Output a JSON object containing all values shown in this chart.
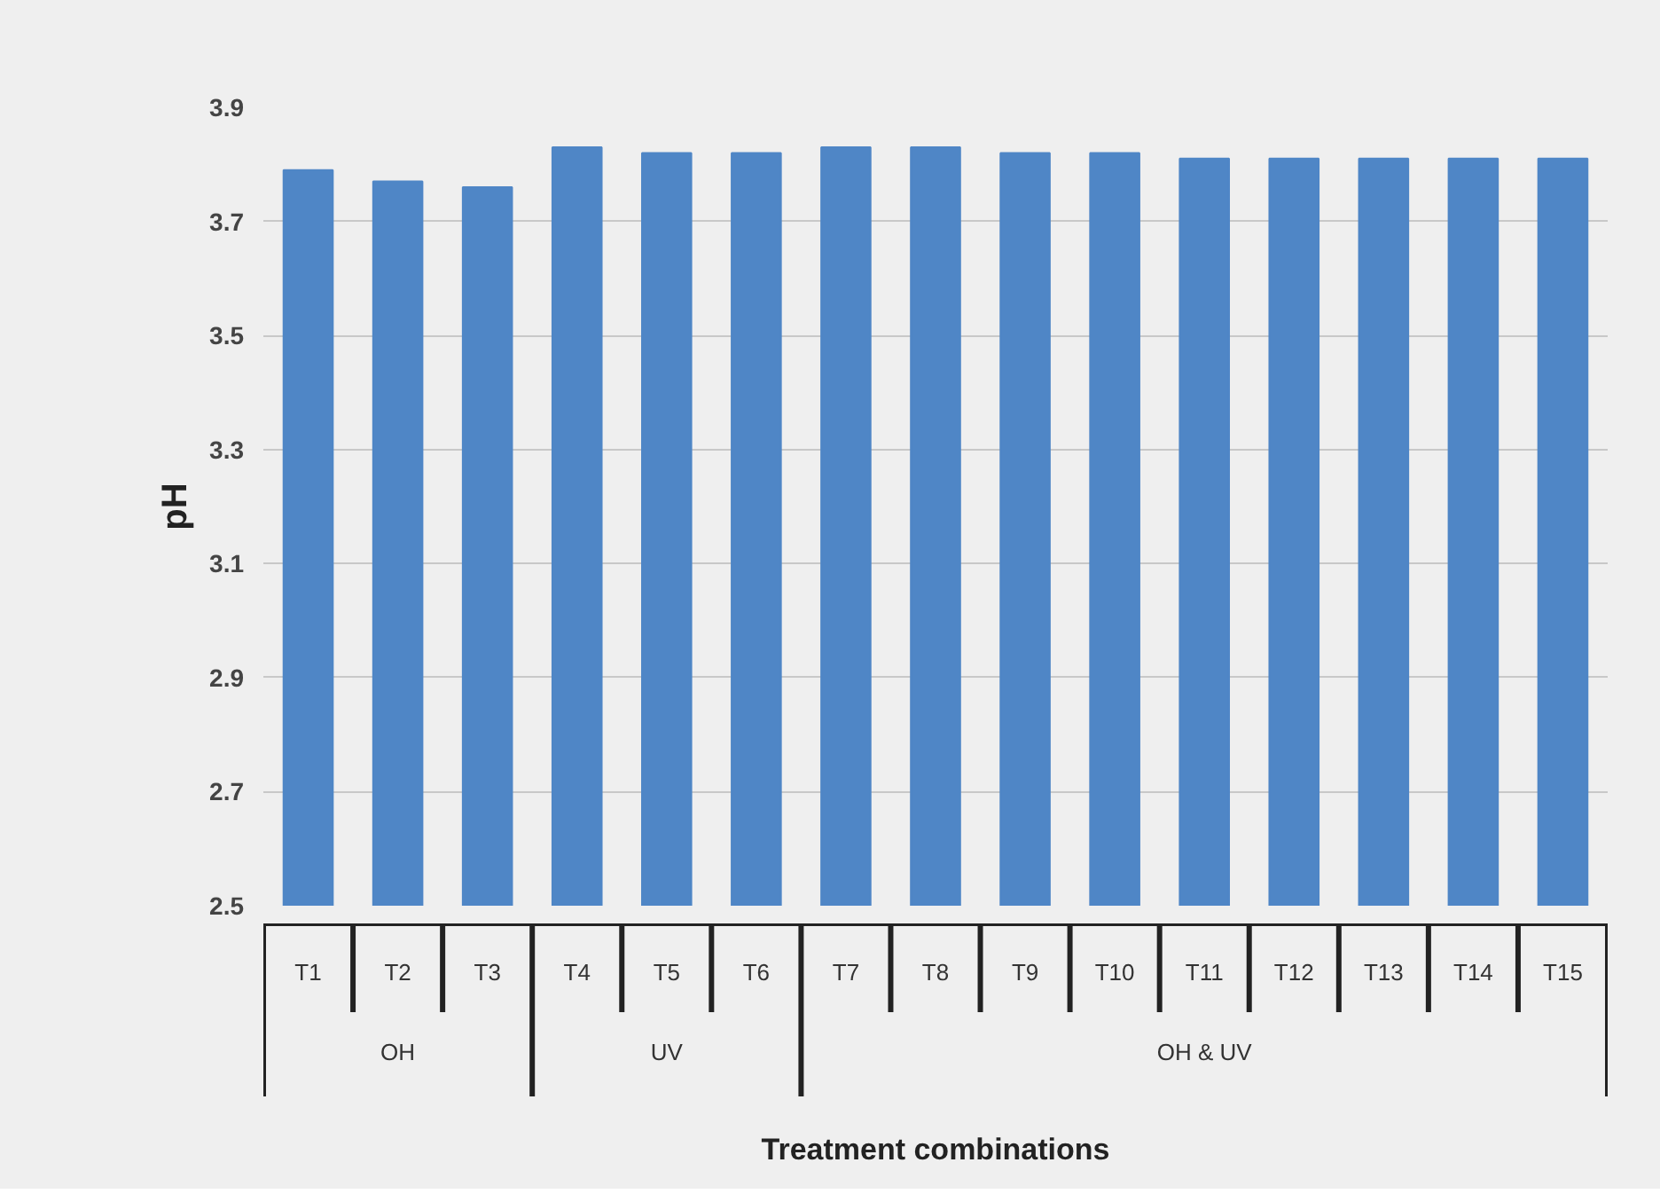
{
  "chart_data": {
    "type": "bar",
    "xlabel": "Treatment combinations",
    "ylabel": "pH",
    "categories": [
      "T1",
      "T2",
      "T3",
      "T4",
      "T5",
      "T6",
      "T7",
      "T8",
      "T9",
      "T10",
      "T11",
      "T12",
      "T13",
      "T14",
      "T15"
    ],
    "values": [
      3.79,
      3.77,
      3.76,
      3.83,
      3.82,
      3.82,
      3.83,
      3.83,
      3.82,
      3.82,
      3.81,
      3.81,
      3.81,
      3.81,
      3.81
    ],
    "color": "#4f86c6",
    "ylim": [
      2.5,
      3.9
    ],
    "yticks": [
      2.5,
      2.7,
      2.9,
      3.1,
      3.3,
      3.5,
      3.7,
      3.9
    ],
    "grid": "y",
    "annotations": [
      "OH",
      "UV",
      "OH & UV"
    ]
  }
}
